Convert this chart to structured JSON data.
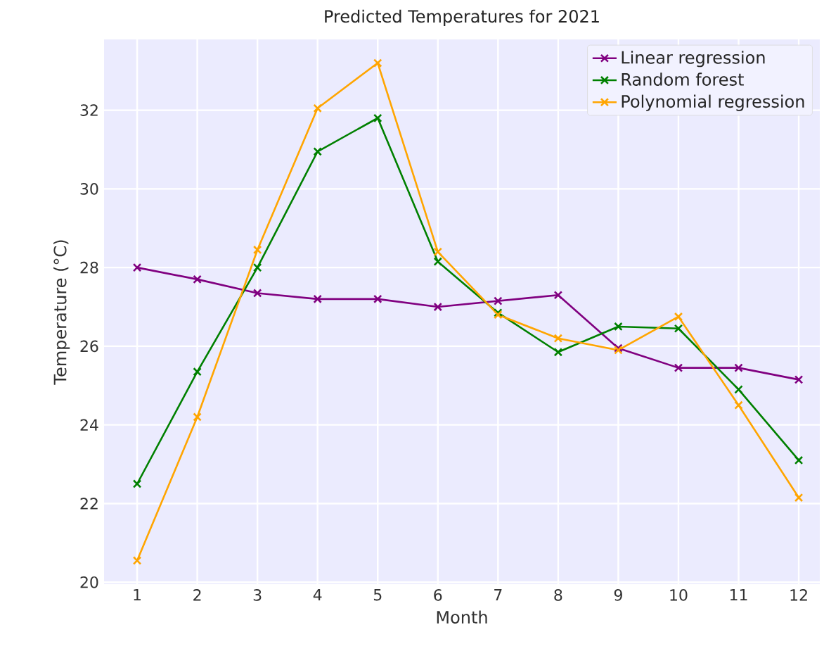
{
  "chart_data": {
    "type": "line",
    "title": "Predicted Temperatures for 2021",
    "xlabel": "Month",
    "ylabel": "Temperature (°C)",
    "x": [
      1,
      2,
      3,
      4,
      5,
      6,
      7,
      8,
      9,
      10,
      11,
      12
    ],
    "xlim": [
      0.45,
      12.35
    ],
    "ylim": [
      19.95,
      33.8
    ],
    "xticks": [
      1,
      2,
      3,
      4,
      5,
      6,
      7,
      8,
      9,
      10,
      11,
      12
    ],
    "yticks": [
      20,
      22,
      24,
      26,
      28,
      30,
      32
    ],
    "grid": true,
    "legend": "top right",
    "marker": "cross",
    "line_style": "solid",
    "series": [
      {
        "name": "Linear regression",
        "color": "#800080",
        "values": [
          28.0,
          27.7,
          27.35,
          27.2,
          27.2,
          27.0,
          27.15,
          27.3,
          25.95,
          25.45,
          25.45,
          25.15
        ]
      },
      {
        "name": "Random forest",
        "color": "#008000",
        "values": [
          22.5,
          25.35,
          28.0,
          30.95,
          31.8,
          28.15,
          26.85,
          25.85,
          26.5,
          26.45,
          24.9,
          23.1
        ]
      },
      {
        "name": "Polynomial regression",
        "color": "#ffa500",
        "values": [
          20.55,
          24.2,
          28.45,
          32.05,
          33.2,
          28.4,
          26.8,
          26.2,
          25.9,
          26.75,
          24.5,
          22.15
        ]
      }
    ]
  }
}
